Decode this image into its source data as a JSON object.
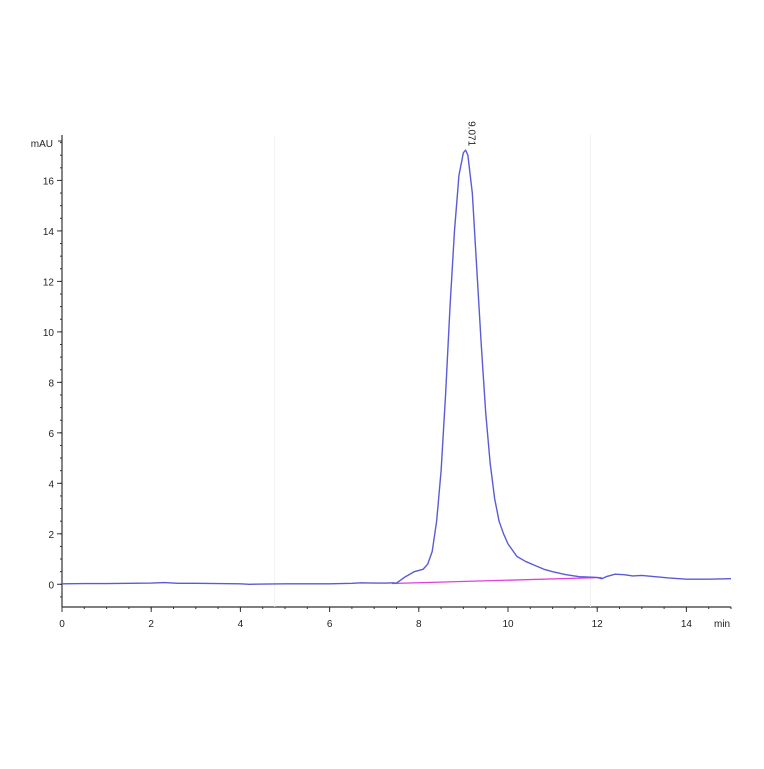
{
  "chart_data": {
    "type": "line",
    "title": "",
    "xlabel": "min",
    "ylabel": "mAU",
    "xlim": [
      0,
      15
    ],
    "ylim": [
      -0.9,
      17.8
    ],
    "x_ticks": [
      0,
      2,
      4,
      6,
      8,
      10,
      12,
      14
    ],
    "y_ticks": [
      0,
      2,
      4,
      6,
      8,
      10,
      12,
      14,
      16
    ],
    "grid": false,
    "legend": "none",
    "colors": {
      "trace": "#5b5bd6",
      "baseline": "#e040e0",
      "axis": "#333333"
    },
    "peak_annotations": [
      {
        "x": 9.05,
        "y": 17.2,
        "label": "9.071"
      }
    ],
    "series": [
      {
        "x": [
          0,
          0.5,
          1,
          1.5,
          2,
          2.3,
          2.6,
          3,
          3.5,
          4,
          4.2,
          4.5,
          5,
          5.5,
          6,
          6.5,
          6.7,
          7,
          7.3,
          7.4,
          7.5,
          7.7,
          7.9,
          8.1,
          8.2,
          8.3,
          8.4,
          8.5,
          8.6,
          8.7,
          8.8,
          8.9,
          9.0,
          9.05,
          9.1,
          9.2,
          9.3,
          9.4,
          9.5,
          9.6,
          9.7,
          9.8,
          9.9,
          10.0,
          10.2,
          10.4,
          10.6,
          10.8,
          11.0,
          11.3,
          11.6,
          12.0,
          12.1,
          12.2,
          12.4,
          12.6,
          12.8,
          13.0,
          13.3,
          13.6,
          14.0,
          14.5,
          15.0
        ],
        "y": [
          0.02,
          0.03,
          0.03,
          0.04,
          0.05,
          0.07,
          0.04,
          0.04,
          0.03,
          0.02,
          0.0,
          0.01,
          0.02,
          0.02,
          0.02,
          0.04,
          0.06,
          0.05,
          0.05,
          0.06,
          0.05,
          0.3,
          0.5,
          0.6,
          0.8,
          1.3,
          2.5,
          4.5,
          7.5,
          11,
          14,
          16.2,
          17.1,
          17.2,
          17.0,
          15.5,
          12.5,
          9.5,
          6.8,
          4.8,
          3.4,
          2.5,
          2.0,
          1.6,
          1.1,
          0.9,
          0.75,
          0.6,
          0.5,
          0.38,
          0.3,
          0.27,
          0.22,
          0.3,
          0.4,
          0.38,
          0.33,
          0.35,
          0.3,
          0.25,
          0.2,
          0.2,
          0.22
        ]
      },
      {
        "x": [
          7.4,
          12.1
        ],
        "y": [
          0.03,
          0.27
        ]
      }
    ]
  }
}
